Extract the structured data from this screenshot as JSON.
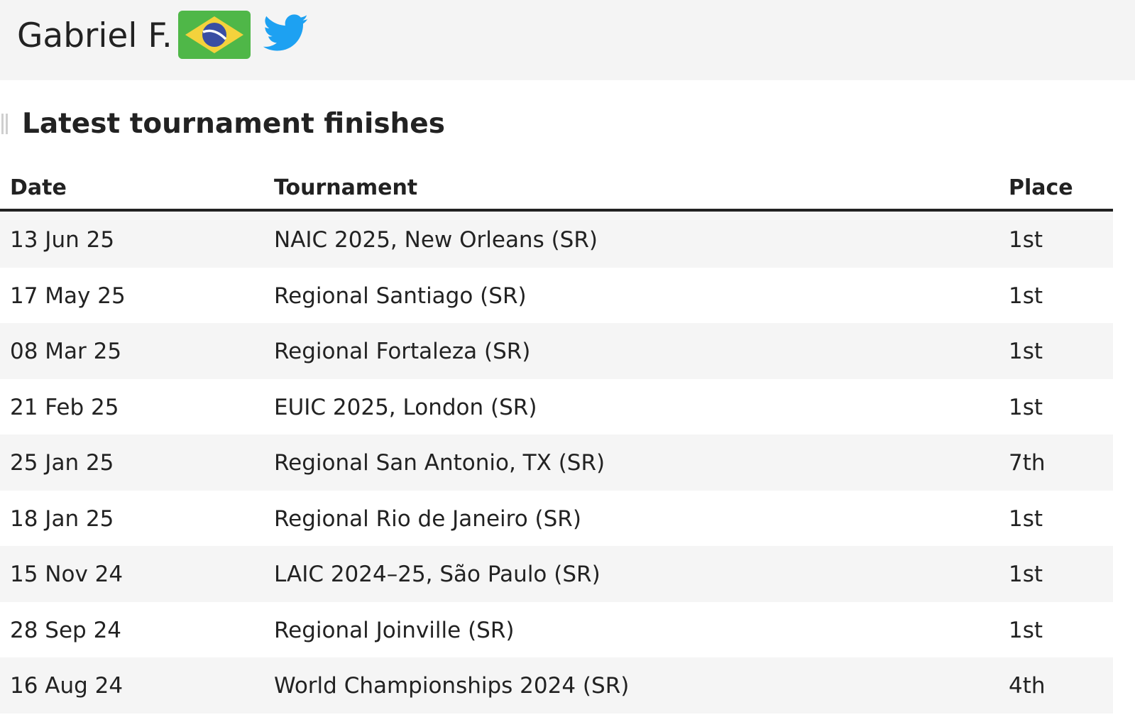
{
  "header": {
    "player_name": "Gabriel F.",
    "flag_icon": "brazil-flag-icon",
    "social_icon": "twitter-icon",
    "background": "#f4f4f4",
    "twitter_color": "#1da1f2"
  },
  "section": {
    "title": "Latest tournament finishes"
  },
  "table": {
    "columns": {
      "date": "Date",
      "tournament": "Tournament",
      "place": "Place"
    },
    "rows": [
      {
        "date": "13 Jun 25",
        "tournament": "NAIC 2025, New Orleans (SR)",
        "place": "1st"
      },
      {
        "date": "17 May 25",
        "tournament": "Regional Santiago (SR)",
        "place": "1st"
      },
      {
        "date": "08 Mar 25",
        "tournament": "Regional Fortaleza (SR)",
        "place": "1st"
      },
      {
        "date": "21 Feb 25",
        "tournament": "EUIC 2025, London (SR)",
        "place": "1st"
      },
      {
        "date": "25 Jan 25",
        "tournament": "Regional San Antonio, TX (SR)",
        "place": "7th"
      },
      {
        "date": "18 Jan 25",
        "tournament": "Regional Rio de Janeiro (SR)",
        "place": "1st"
      },
      {
        "date": "15 Nov 24",
        "tournament": "LAIC 2024–25, São Paulo (SR)",
        "place": "1st"
      },
      {
        "date": "28 Sep 24",
        "tournament": "Regional Joinville (SR)",
        "place": "1st"
      },
      {
        "date": "16 Aug 24",
        "tournament": "World Championships 2024 (SR)",
        "place": "4th"
      }
    ]
  }
}
